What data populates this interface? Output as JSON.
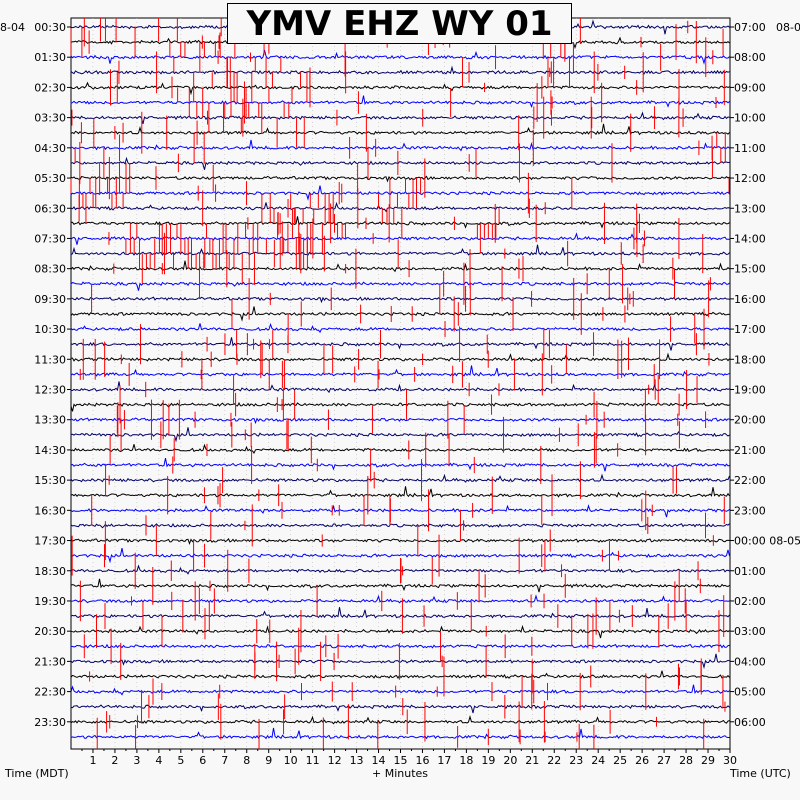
{
  "chart_data": {
    "type": "line",
    "title": "YMV EHZ WY 01",
    "xlabel": "+ Minutes",
    "ylabel_left": "Time (MDT)",
    "ylabel_right": "Time (UTC)",
    "corner_left": "8-04",
    "corner_right": "08-0",
    "x_ticks": [
      "1",
      "2",
      "3",
      "4",
      "5",
      "6",
      "7",
      "8",
      "9",
      "10",
      "11",
      "12",
      "13",
      "14",
      "15",
      "16",
      "17",
      "18",
      "19",
      "20",
      "21",
      "22",
      "23",
      "24",
      "25",
      "26",
      "27",
      "28",
      "29",
      "30"
    ],
    "xlim": [
      0,
      30
    ],
    "y_ticks_left": [
      "00:30",
      "01:30",
      "02:30",
      "03:30",
      "04:30",
      "05:30",
      "06:30",
      "07:30",
      "08:30",
      "09:30",
      "10:30",
      "11:30",
      "12:30",
      "13:30",
      "14:30",
      "15:30",
      "16:30",
      "17:30",
      "18:30",
      "19:30",
      "20:30",
      "21:30",
      "22:30",
      "23:30"
    ],
    "y_ticks_right": [
      "07:00",
      "08:00",
      "09:00",
      "10:00",
      "11:00",
      "12:00",
      "13:00",
      "14:00",
      "15:00",
      "16:00",
      "17:00",
      "18:00",
      "19:00",
      "20:00",
      "21:00",
      "22:00",
      "23:00",
      "00:00 08-05",
      "01:00",
      "02:00",
      "03:00",
      "04:00",
      "05:00",
      "06:00"
    ],
    "trace_count": 48,
    "trace_colors": [
      "#000066",
      "#000000",
      "#0000ff"
    ],
    "clip_color": "#ff0000",
    "grid": true
  }
}
